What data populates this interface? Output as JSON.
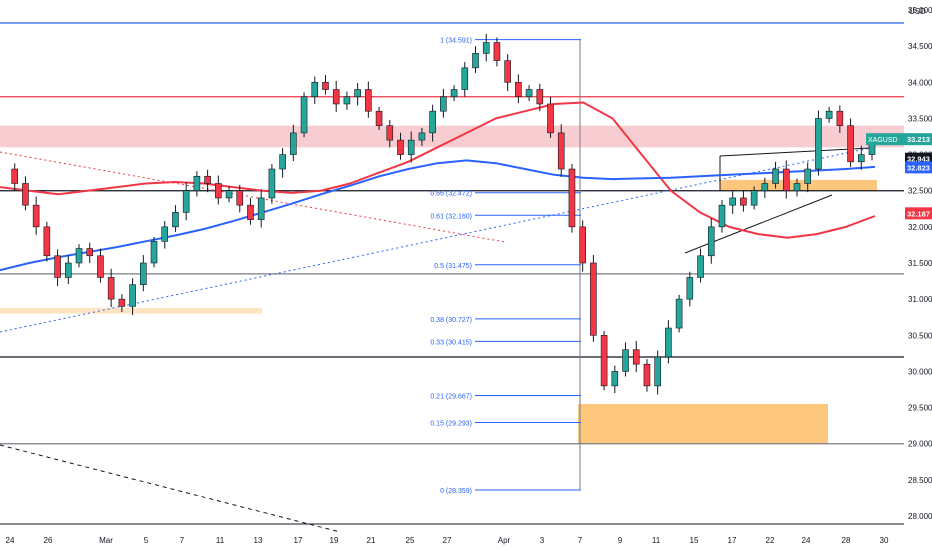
{
  "chart_data": {
    "type": "candlestick",
    "symbol": "XAGUSD",
    "currency_label": "USD",
    "y_ticks": [
      "35.000",
      "34.500",
      "34.000",
      "33.500",
      "33.000",
      "32.500",
      "32.000",
      "31.500",
      "31.000",
      "30.500",
      "30.000",
      "29.500",
      "29.000",
      "28.500",
      "28.000"
    ],
    "x_ticks": [
      "24",
      "26",
      "Mar",
      "5",
      "7",
      "11",
      "13",
      "17",
      "19",
      "21",
      "25",
      "27",
      "Apr",
      "3",
      "7",
      "9",
      "11",
      "15",
      "17",
      "22",
      "24",
      "28",
      "30"
    ],
    "ylim": [
      27.8,
      35.25
    ],
    "price_tags": [
      {
        "label": "XAGUSD",
        "value": "33.213",
        "color": "#26a69a"
      },
      {
        "value": "32.943",
        "color": "#131722"
      },
      {
        "value": "32.823",
        "color": "#2962ff"
      },
      {
        "value": "32.187",
        "color": "#f23645"
      }
    ],
    "fib_levels": [
      {
        "ratio": "1",
        "price": "34.591"
      },
      {
        "ratio": "0.66",
        "price": "32.472"
      },
      {
        "ratio": "0.61",
        "price": "32.160"
      },
      {
        "ratio": "0.5",
        "price": "31.475"
      },
      {
        "ratio": "0.38",
        "price": "30.727"
      },
      {
        "ratio": "0.33",
        "price": "30.415"
      },
      {
        "ratio": "0.21",
        "price": "29.667"
      },
      {
        "ratio": "0.15",
        "price": "29.293"
      },
      {
        "ratio": "0",
        "price": "28.359"
      }
    ],
    "horizontal_lines": [
      {
        "price": 34.82,
        "color": "#2962ff"
      },
      {
        "price": 33.8,
        "color": "#f23645"
      },
      {
        "price": 32.5,
        "color": "#131722"
      },
      {
        "price": 31.35,
        "color": "#787b86"
      },
      {
        "price": 30.2,
        "color": "#131722"
      },
      {
        "price": 29.0,
        "color": "#787b86"
      }
    ],
    "zones": [
      {
        "from": 33.1,
        "to": 33.4,
        "color": "#f7c8cd"
      },
      {
        "from": 32.5,
        "to": 32.65,
        "color": "#fcc16f"
      },
      {
        "from": 29.0,
        "to": 29.55,
        "color": "#fcc16f"
      },
      {
        "from": 30.8,
        "to": 30.88,
        "color": "#fde2bd"
      }
    ],
    "series": [
      {
        "color": "#f23645",
        "values": [
          32.55,
          32.5,
          32.45,
          32.5,
          32.55,
          32.6,
          32.62,
          32.6,
          32.55,
          32.5,
          32.47,
          32.5,
          32.6,
          32.75,
          32.9,
          33.1,
          33.3,
          33.5,
          33.6,
          33.7,
          33.72,
          33.5,
          33.0,
          32.5,
          32.2,
          32.0,
          31.9,
          31.85,
          31.9,
          32.0,
          32.15
        ]
      },
      {
        "color": "#2962ff",
        "values": [
          31.4,
          31.5,
          31.58,
          31.65,
          31.72,
          31.8,
          31.88,
          31.97,
          32.08,
          32.2,
          32.32,
          32.45,
          32.57,
          32.7,
          32.8,
          32.88,
          32.92,
          32.88,
          32.8,
          32.72,
          32.68,
          32.66,
          32.67,
          32.68,
          32.7,
          32.72,
          32.74,
          32.76,
          32.78,
          32.8,
          32.83
        ]
      },
      {
        "color": "#131722",
        "name": "XAGUSD",
        "values": [
          32.8,
          32.6,
          32.3,
          32.0,
          31.6,
          31.3,
          31.5,
          31.7,
          31.6,
          31.3,
          31.0,
          30.9,
          31.2,
          31.5,
          31.8,
          32.0,
          32.2,
          32.5,
          32.7,
          32.6,
          32.4,
          32.5,
          32.3,
          32.1,
          32.4,
          32.8,
          33.0,
          33.3,
          33.8,
          34.0,
          33.9,
          33.7,
          33.8,
          33.9,
          33.6,
          33.4,
          33.2,
          33.0,
          33.2,
          33.3,
          33.6,
          33.8,
          33.9,
          34.2,
          34.4,
          34.55,
          34.3,
          34.0,
          33.8,
          33.9,
          33.7,
          33.3,
          32.8,
          32.0,
          31.5,
          30.5,
          29.8,
          30.0,
          30.3,
          30.1,
          29.8,
          30.2,
          30.6,
          31.0,
          31.3,
          31.6,
          32.0,
          32.3,
          32.4,
          32.3,
          32.5,
          32.6,
          32.8,
          32.5,
          32.6,
          32.8,
          33.5,
          33.6,
          33.4,
          32.9,
          33.0,
          33.213
        ]
      }
    ]
  }
}
